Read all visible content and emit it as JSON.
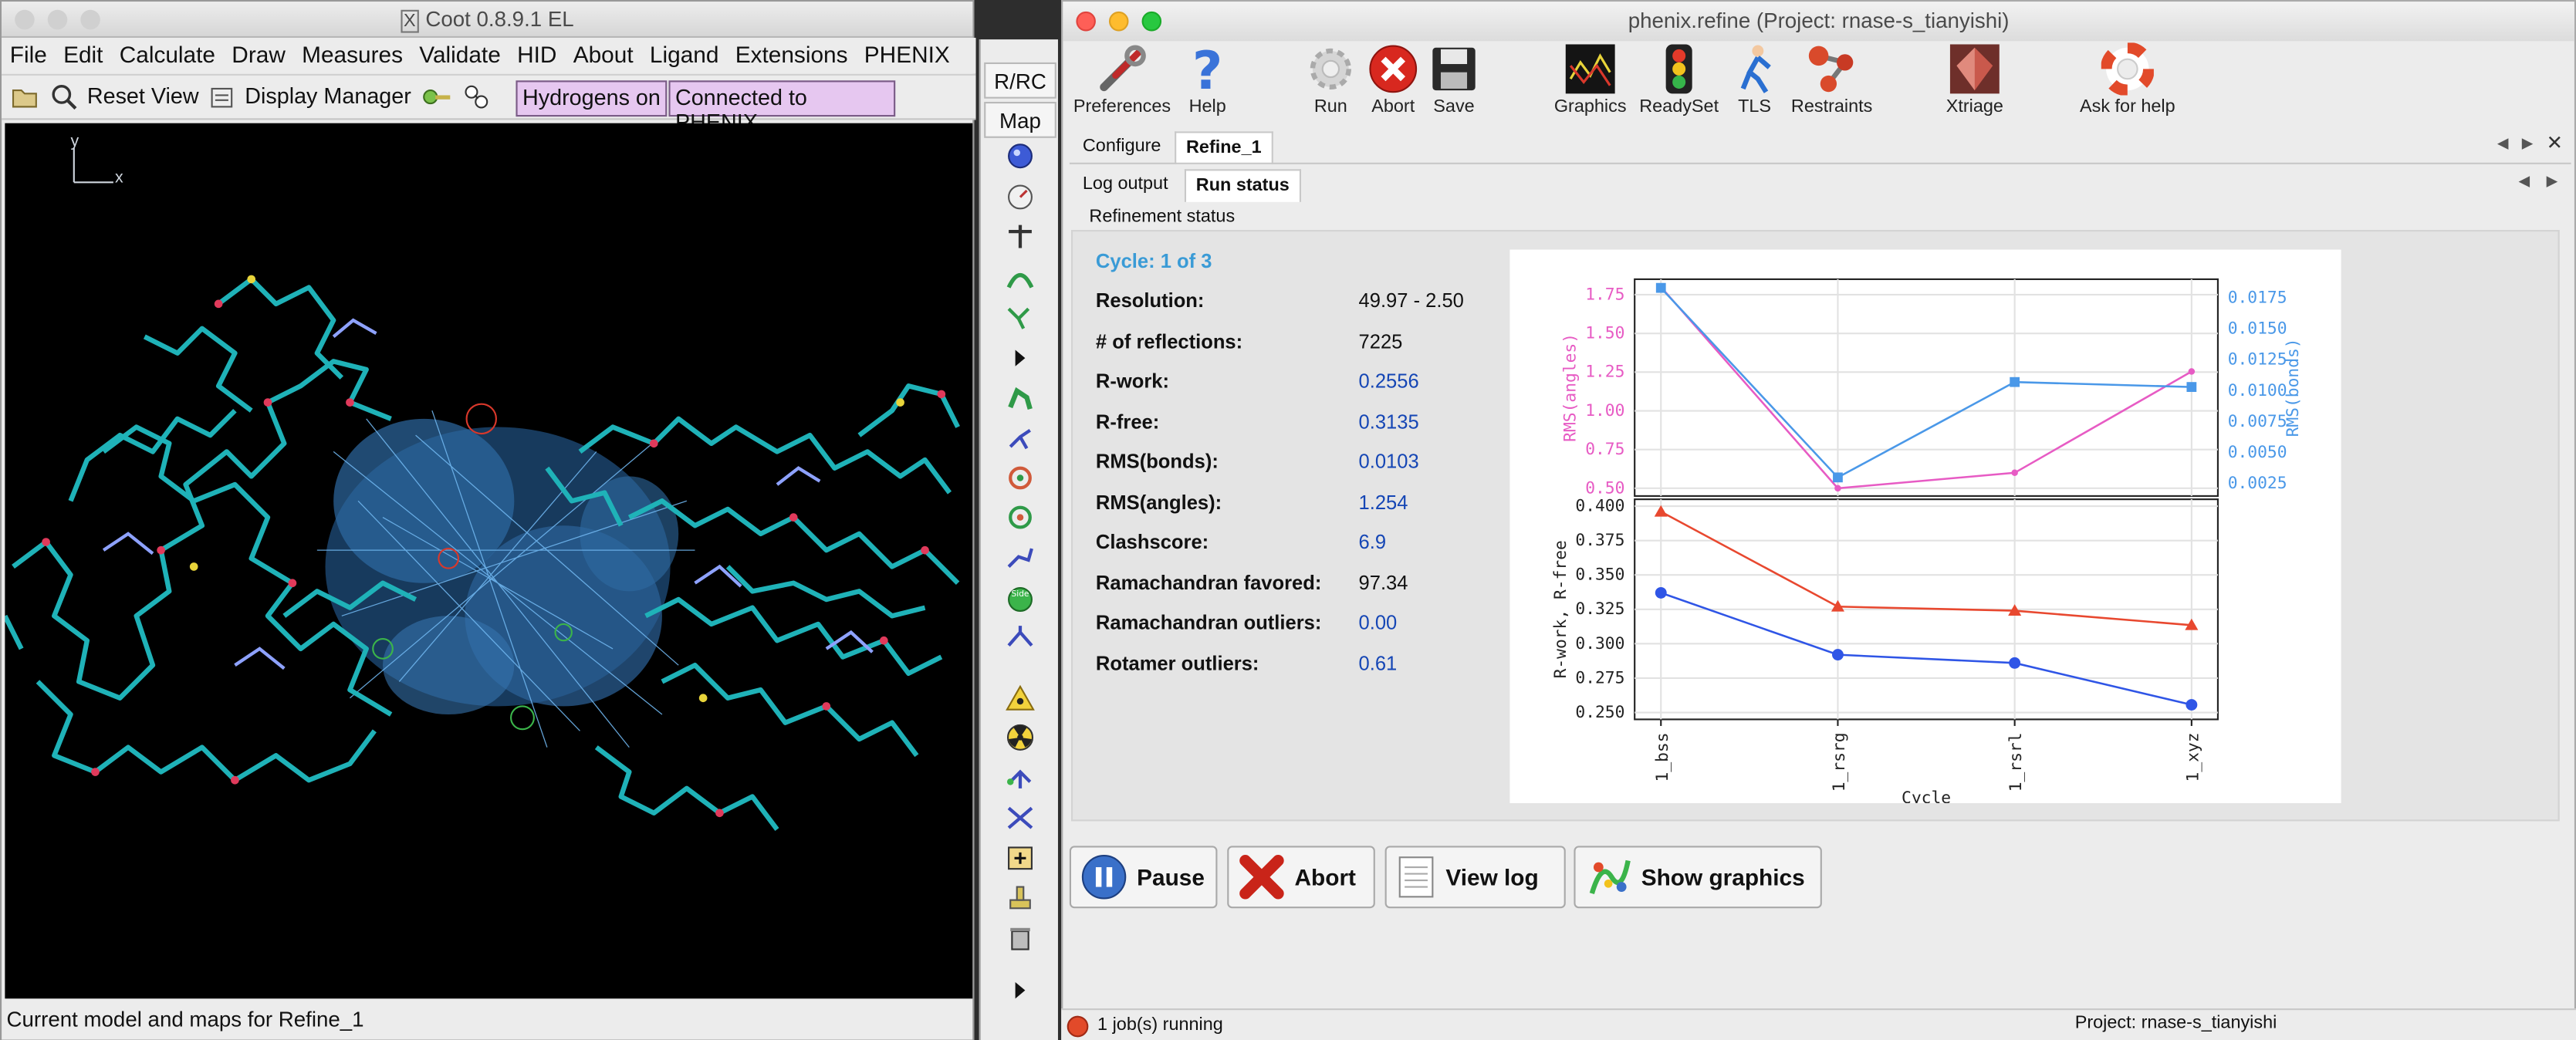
{
  "coot": {
    "title": "Coot 0.8.9.1 EL",
    "menu": [
      "File",
      "Edit",
      "Calculate",
      "Draw",
      "Measures",
      "Validate",
      "HID",
      "About",
      "Ligand",
      "Extensions",
      "PHENIX"
    ],
    "toolbar": {
      "reset_view": "Reset View",
      "display_manager": "Display Manager",
      "hydrogens": "Hydrogens on",
      "connected": "Connected to PHENIX"
    },
    "axis_y": "y",
    "axis_x": "x",
    "status": "Current model and maps for Refine_1",
    "side_buttons": {
      "rrc": "R/RC",
      "map": "Map"
    }
  },
  "phenix": {
    "title": "phenix.refine (Project: rnase-s_tianyishi)",
    "toolbar": [
      "Preferences",
      "Help",
      "Run",
      "Abort",
      "Save",
      "Graphics",
      "ReadySet",
      "TLS",
      "Restraints",
      "Xtriage",
      "Ask for help"
    ],
    "tabs": [
      "Configure",
      "Refine_1"
    ],
    "subtabs": [
      "Log output",
      "Run status"
    ],
    "section_title": "Refinement status",
    "cycle": "Cycle: 1 of 3",
    "stats": [
      {
        "label": "Resolution:",
        "value": "49.97 - 2.50",
        "color": "black"
      },
      {
        "label": "# of reflections:",
        "value": "7225",
        "color": "black"
      },
      {
        "label": "R-work:",
        "value": "0.2556",
        "color": "blue"
      },
      {
        "label": "R-free:",
        "value": "0.3135",
        "color": "blue"
      },
      {
        "label": "RMS(bonds):",
        "value": "0.0103",
        "color": "blue"
      },
      {
        "label": "RMS(angles):",
        "value": "1.254",
        "color": "blue"
      },
      {
        "label": "Clashscore:",
        "value": "6.9",
        "color": "blue"
      },
      {
        "label": "Ramachandran favored:",
        "value": "97.34",
        "color": "black"
      },
      {
        "label": "Ramachandran outliers:",
        "value": "0.00",
        "color": "blue"
      },
      {
        "label": "Rotamer outliers:",
        "value": "0.61",
        "color": "blue"
      }
    ],
    "buttons": [
      "Pause",
      "Abort",
      "View log",
      "Show graphics"
    ],
    "status_left": "1 job(s) running",
    "status_right": "Project: rnase-s_tianyishi"
  },
  "chart_data": [
    {
      "type": "line",
      "categories": [
        "1_bss",
        "1_rsrg",
        "1_rsrl",
        "1_xyz"
      ],
      "ylabel": "RMS(angles)",
      "ylabel_right": "RMS(bonds)",
      "ylim": [
        0.45,
        1.85
      ],
      "yticks": [
        "1.75",
        "1.50",
        "1.25",
        "1.00",
        "0.75",
        "0.50"
      ],
      "ylim_right": [
        0.0015,
        0.019
      ],
      "yticks_right": [
        "0.0175",
        "0.0150",
        "0.0125",
        "0.0100",
        "0.0075",
        "0.0050",
        "0.0025"
      ],
      "series": [
        {
          "name": "RMS(angles)",
          "values": [
            1.8,
            0.5,
            0.6,
            1.254
          ],
          "color": "#e75bc4"
        },
        {
          "name": "RMS(bonds)",
          "values": [
            0.0183,
            0.003,
            0.0107,
            0.0103
          ],
          "color": "#4a98e8"
        }
      ]
    },
    {
      "type": "line",
      "categories": [
        "1_bss",
        "1_rsrg",
        "1_rsrl",
        "1_xyz"
      ],
      "xlabel": "Cycle",
      "ylabel": "R-work, R-free",
      "ylim": [
        0.245,
        0.405
      ],
      "yticks": [
        "0.400",
        "0.375",
        "0.350",
        "0.325",
        "0.300",
        "0.275",
        "0.250"
      ],
      "series": [
        {
          "name": "R-free",
          "values": [
            0.396,
            0.327,
            0.324,
            0.3135
          ],
          "color": "#e8482f"
        },
        {
          "name": "R-work",
          "values": [
            0.337,
            0.292,
            0.286,
            0.2556
          ],
          "color": "#2f55e6"
        }
      ]
    }
  ]
}
